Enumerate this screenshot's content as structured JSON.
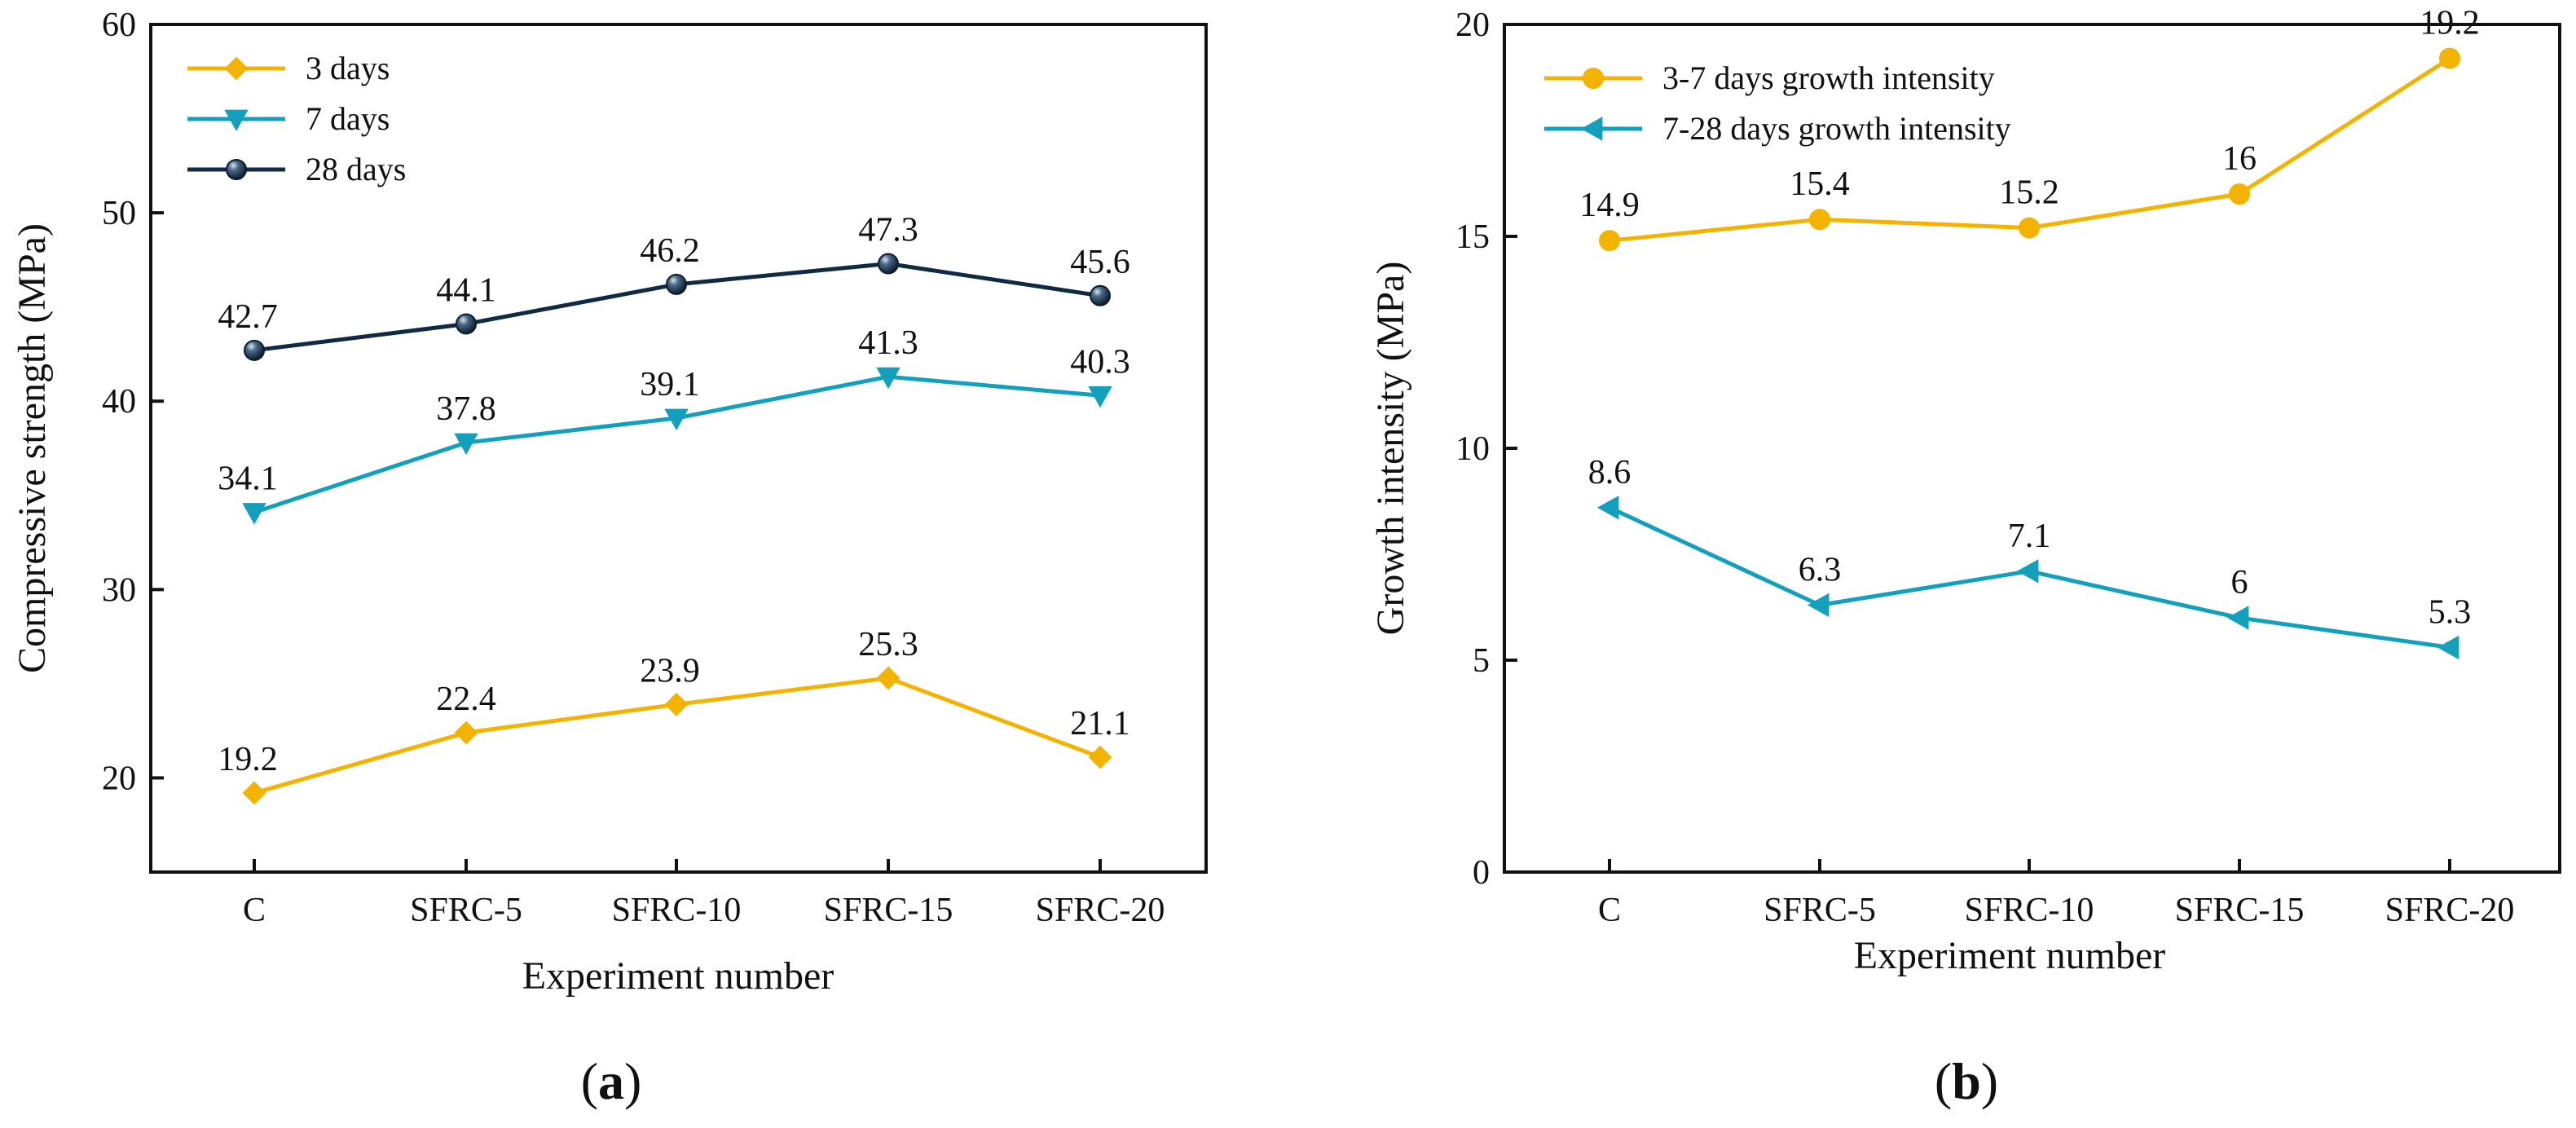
{
  "chart_data": [
    {
      "type": "line",
      "panel_label": "(a)",
      "panel_letter": "a",
      "xlabel": "Experiment number",
      "ylabel": "Compressive strength (MPa)",
      "categories": [
        "C",
        "SFRC-5",
        "SFRC-10",
        "SFRC-15",
        "SFRC-20"
      ],
      "ylim": [
        15,
        60
      ],
      "yticks": [
        20,
        30,
        40,
        50,
        60
      ],
      "legend_position": "top-left",
      "series": [
        {
          "name": "3 days",
          "values": [
            19.2,
            22.4,
            23.9,
            25.3,
            21.1
          ],
          "color": "#f5b301",
          "marker": "diamond"
        },
        {
          "name": "7 days",
          "values": [
            34.1,
            37.8,
            39.1,
            41.3,
            40.3
          ],
          "color": "#12a0bd",
          "marker": "triangle-down"
        },
        {
          "name": "28 days",
          "values": [
            42.7,
            44.1,
            46.2,
            47.3,
            45.6
          ],
          "color": "#102a43",
          "marker": "sphere"
        }
      ]
    },
    {
      "type": "line",
      "panel_label": "(b)",
      "panel_letter": "b",
      "xlabel": "Experiment number",
      "ylabel": "Growth intensity (MPa)",
      "categories": [
        "C",
        "SFRC-5",
        "SFRC-10",
        "SFRC-15",
        "SFRC-20"
      ],
      "ylim": [
        0,
        20
      ],
      "yticks": [
        0,
        5,
        10,
        15,
        20
      ],
      "legend_position": "top-left",
      "series": [
        {
          "name": "3-7 days growth intensity",
          "values": [
            14.9,
            15.4,
            15.2,
            16,
            19.2
          ],
          "color": "#f5b301",
          "marker": "circle"
        },
        {
          "name": "7-28 days growth intensity",
          "values": [
            8.6,
            6.3,
            7.1,
            6,
            5.3
          ],
          "color": "#12a0bd",
          "marker": "triangle-left"
        }
      ]
    }
  ]
}
